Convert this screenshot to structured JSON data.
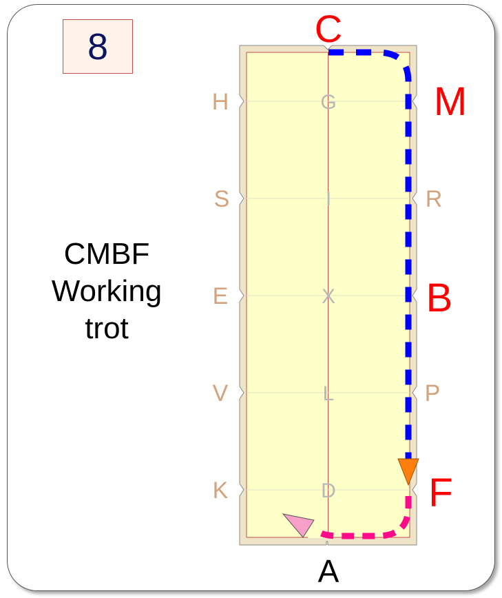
{
  "test_number": "8",
  "movement": {
    "line1": "CMBF",
    "line2": "Working",
    "line3": "trot"
  },
  "colors": {
    "arena_fill": "#ffffc8",
    "arena_border": "#efe3c8",
    "side_letter": "#d2a37c",
    "center_letter": "#b8b8b8",
    "highlight_letter": "#ff0000",
    "path_primary": "#0000ff",
    "path_secondary": "#ff0a8a",
    "arrow_end": "#ff7f0e",
    "arrow_start": "#f7a0c8"
  },
  "arena": {
    "left_letters": [
      "H",
      "S",
      "E",
      "V",
      "K"
    ],
    "center_letters": [
      "G",
      "I",
      "X",
      "L",
      "D"
    ],
    "right_letters": [
      "M",
      "R",
      "B",
      "P",
      "F"
    ],
    "top_letter": "C",
    "bottom_letter": "A",
    "highlighted": [
      "C",
      "M",
      "B",
      "F"
    ]
  }
}
